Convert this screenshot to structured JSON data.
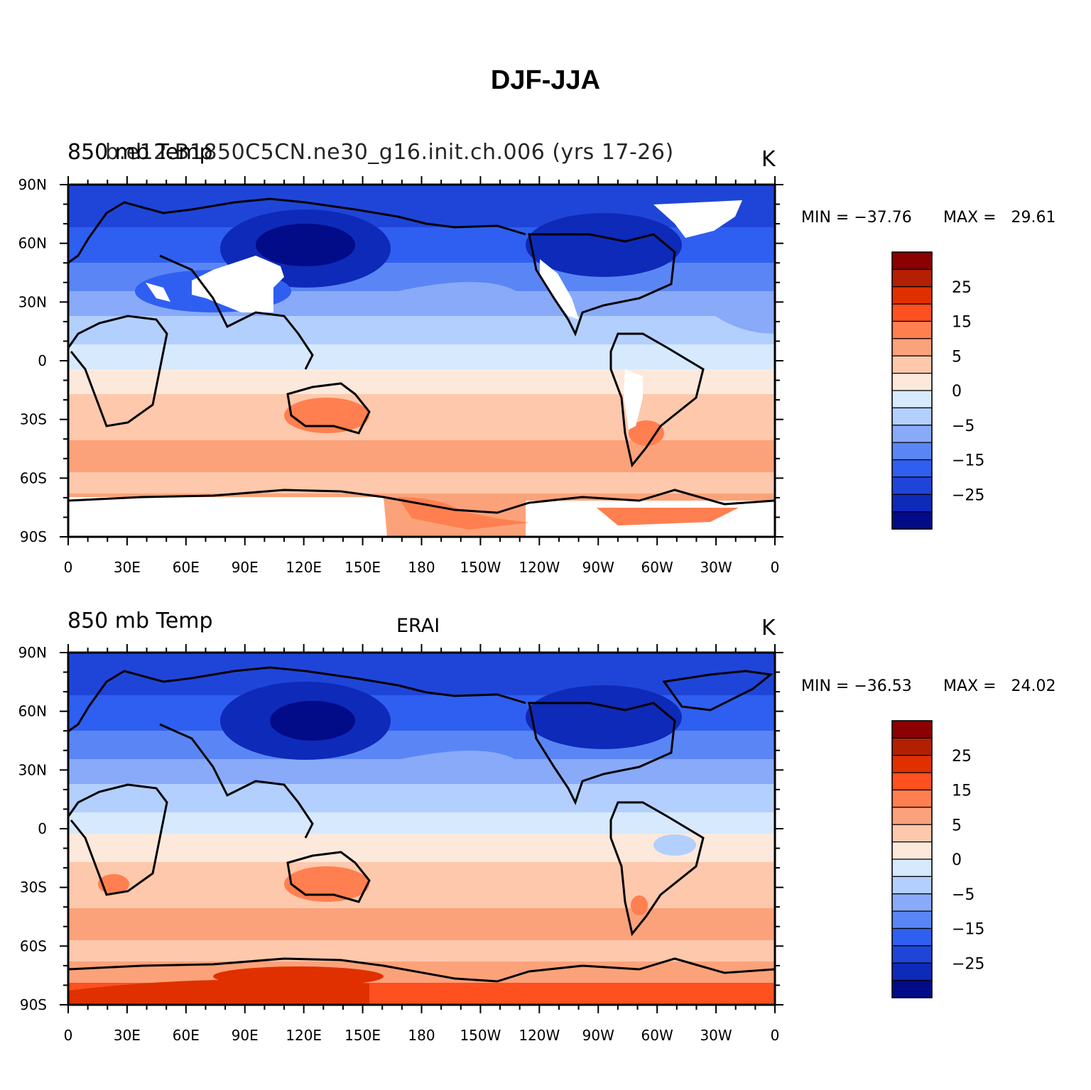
{
  "title": "DJF-JJA",
  "panels": [
    {
      "id": "top",
      "left_title": "850 mb Temp",
      "center_title": "b.e12.B1850C5CN.ne30_g16.init.ch.006 (yrs 17-26)",
      "units": "K",
      "min_label": "MIN = −37.76",
      "max_label": "MAX =   29.61",
      "x_ticks": [
        "0",
        "30E",
        "60E",
        "90E",
        "120E",
        "150E",
        "180",
        "150W",
        "120W",
        "90W",
        "60W",
        "30W",
        "0"
      ],
      "y_ticks": [
        "90N",
        "60N",
        "30N",
        "0",
        "30S",
        "60S",
        "90S"
      ],
      "has_missing": true
    },
    {
      "id": "bottom",
      "left_title": "850 mb Temp",
      "center_title": "ERAI",
      "units": "K",
      "min_label": "MIN = −36.53",
      "max_label": "MAX =   24.02",
      "x_ticks": [
        "0",
        "30E",
        "60E",
        "90E",
        "120E",
        "150E",
        "180",
        "150W",
        "120W",
        "90W",
        "60W",
        "30W",
        "0"
      ],
      "y_ticks": [
        "90N",
        "60N",
        "30N",
        "0",
        "30S",
        "60S",
        "90S"
      ],
      "has_missing": false
    }
  ],
  "colorbar": {
    "labels": [
      "25",
      "15",
      "5",
      "0",
      "−5",
      "−15",
      "−25"
    ],
    "colors_top_to_bottom": [
      "#8b0000",
      "#b22000",
      "#e03000",
      "#ff5020",
      "#ff7f50",
      "#fca27a",
      "#fdc8ab",
      "#fde9db",
      "#d6e9fd",
      "#b3cffd",
      "#88aaf8",
      "#5a86f5",
      "#2f5ff0",
      "#1f45d8",
      "#0e2ab8",
      "#020b88"
    ]
  },
  "map_regions": {
    "continents": [
      "Africa",
      "Eurasia",
      "North America",
      "South America",
      "Australia",
      "Antarctica",
      "Greenland"
    ]
  }
}
